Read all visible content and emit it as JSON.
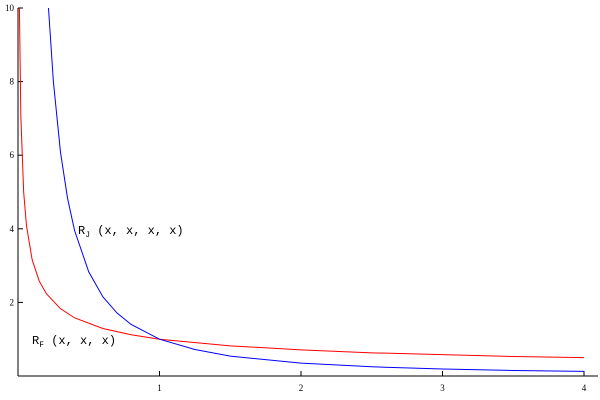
{
  "chart_data": {
    "type": "line",
    "xlim": [
      0,
      4.1
    ],
    "ylim": [
      0,
      10
    ],
    "xticks": [
      1,
      2,
      3,
      4
    ],
    "yticks": [
      2,
      4,
      6,
      8,
      10
    ],
    "series": [
      {
        "name": {
          "base": "R",
          "sub": "F",
          "args": " (x, x, x)"
        },
        "color": "#ff0000",
        "x": [
          0.01,
          0.02,
          0.04,
          0.06,
          0.1,
          0.15,
          0.2,
          0.3,
          0.4,
          0.6,
          0.8,
          1,
          1.5,
          2,
          2.5,
          3,
          3.5,
          4
        ],
        "values": [
          10,
          7.07,
          5,
          4.08,
          3.16,
          2.58,
          2.24,
          1.83,
          1.58,
          1.29,
          1.12,
          1,
          0.82,
          0.71,
          0.63,
          0.58,
          0.53,
          0.5
        ]
      },
      {
        "name": {
          "base": "R",
          "sub": "J",
          "args": " (x, x, x, x)"
        },
        "color": "#0000ff",
        "x": [
          0.2154,
          0.25,
          0.3,
          0.35,
          0.4,
          0.5,
          0.6,
          0.7,
          0.8,
          1,
          1.25,
          1.5,
          2,
          2.5,
          3,
          3.5,
          4
        ],
        "values": [
          10,
          8,
          6.09,
          4.83,
          3.95,
          2.83,
          2.15,
          1.71,
          1.4,
          1,
          0.72,
          0.54,
          0.35,
          0.25,
          0.19,
          0.15,
          0.125
        ]
      }
    ]
  }
}
